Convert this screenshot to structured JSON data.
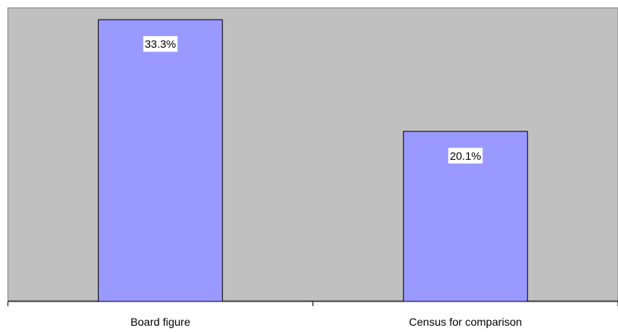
{
  "chart_data": {
    "type": "bar",
    "categories": [
      "Board figure",
      "Census for comparison"
    ],
    "values": [
      33.3,
      20.1
    ],
    "data_labels": [
      "33.3%",
      "20.1%"
    ],
    "title": "",
    "xlabel": "",
    "ylabel": "",
    "ylim": [
      0,
      34.7
    ],
    "grid": false,
    "legend": "none",
    "colors": {
      "plot_background": "#c0c0c0",
      "bar_fill": "#9999ff",
      "bar_stroke": "#000000",
      "axis": "#000000",
      "label_background": "#ffffff"
    }
  }
}
